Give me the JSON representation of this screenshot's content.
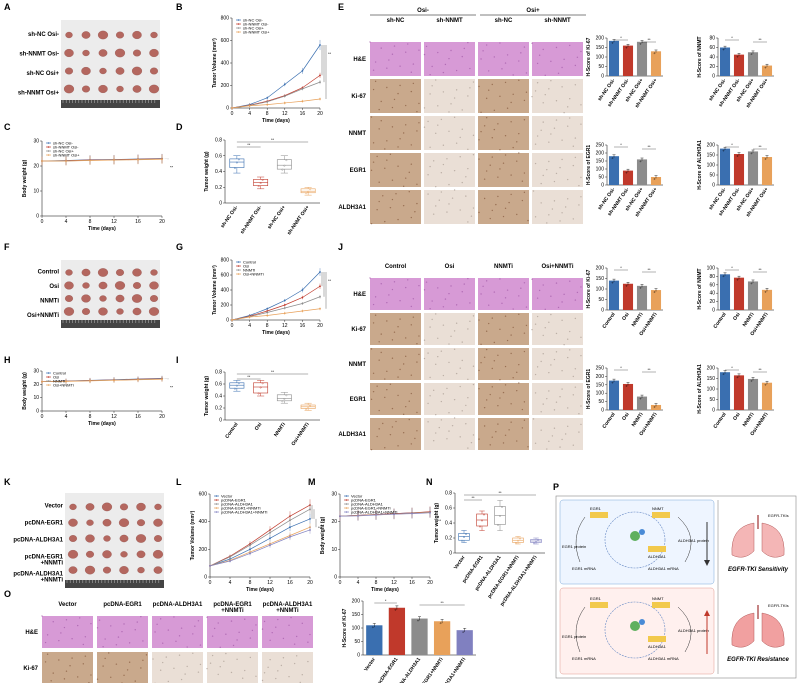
{
  "letters": [
    "A",
    "B",
    "C",
    "D",
    "E",
    "F",
    "G",
    "H",
    "I",
    "J",
    "K",
    "L",
    "M",
    "N",
    "O",
    "P"
  ],
  "colors": {
    "ctrl": "#3a6fb0",
    "red": "#c0392b",
    "grey": "#8c8c8c",
    "orange": "#e8a15a",
    "purple": "#8080c0",
    "he": "#d79ad6",
    "ihc_light": "#eadfd6",
    "ihc_dark": "#c9a98c",
    "tumor": "#b4675f",
    "photo_bg": "#ececec",
    "ruler": "#444444"
  },
  "labels": {
    "photoA": [
      "sh-NC Osi-",
      "sh-NNMT Osi-",
      "sh-NC Osi+",
      "sh-NNMT Osi+"
    ],
    "photoF": [
      "Control",
      "Osi",
      "NNMTi",
      "Osi+NNMTi"
    ],
    "photoK": [
      "Vector",
      "pcDNA-EGR1",
      "pcDNA-ALDH3A1",
      "pcDNA-EGR1\n+NNMTi",
      "pcDNA-ALDH3A1\n+NNMTi"
    ],
    "x_time": "Time (days)",
    "y_tv": "Tumor Volume (mm³)",
    "y_bw": "Body weight (g)",
    "y_tw": "Tumor weight (g)",
    "E_groups": [
      "Osi-",
      "Osi+"
    ],
    "E_cols": [
      "sh-NC",
      "sh-NNMT",
      "sh-NC",
      "sh-NNMT"
    ],
    "J_cols": [
      "Control",
      "Osi",
      "NNMTi",
      "Osi+NNMTi"
    ],
    "O_cols": [
      "Vector",
      "pcDNA-EGR1",
      "pcDNA-ALDH3A1",
      "pcDNA-EGR1\n+NNMTi",
      "pcDNA-ALDH3A1\n+NNMTi"
    ],
    "stains5": [
      "H&E",
      "Ki-67",
      "NNMT",
      "EGR1",
      "ALDH3A1"
    ],
    "stainsO": [
      "H&E",
      "Ki-67"
    ],
    "ylab_Ki67": "H-Score of Ki-67",
    "ylab_NNMT": "H-Score of NNMT",
    "ylab_EGR1": "H-Score of EGR1",
    "ylab_ALDH3A1": "H-Score of ALDH3A1",
    "sig": "*",
    "sig2": "**"
  },
  "P": {
    "sensitivity": "EGFR-TKI Sensitivity",
    "resistance": "EGFR-TKI Resistance",
    "tki": "EGFR-TKIs",
    "genes": [
      "EGR1",
      "NNMT",
      "ALDH3A1"
    ],
    "mrna": [
      "EGR1 mRNA",
      "ALDH3A1 mRNA"
    ],
    "proteins": [
      "EGR1 protein",
      "ALDH3A1 protein"
    ]
  },
  "chart_data": [
    {
      "panel": "B",
      "type": "line",
      "xlabel": "Time (days)",
      "ylabel": "Tumor Volume (mm³)",
      "x": [
        0,
        4,
        8,
        12,
        16,
        20
      ],
      "xticks": [
        0,
        4,
        8,
        12,
        16,
        20
      ],
      "yticks": [
        0,
        200,
        400,
        600,
        800
      ],
      "ylim": [
        0,
        800
      ],
      "series": [
        {
          "name": "sh-NC Osi-",
          "values": [
            0,
            30,
            90,
            210,
            330,
            560
          ]
        },
        {
          "name": "sh-NNMT Osi-",
          "values": [
            0,
            25,
            60,
            110,
            180,
            290
          ]
        },
        {
          "name": "sh-NC Osi+",
          "values": [
            0,
            22,
            55,
            105,
            170,
            230
          ]
        },
        {
          "name": "sh-NNMT Osi+",
          "values": [
            0,
            20,
            30,
            45,
            60,
            80
          ]
        }
      ]
    },
    {
      "panel": "C",
      "type": "line",
      "xlabel": "Time (days)",
      "ylabel": "Body weight (g)",
      "x": [
        0,
        4,
        8,
        12,
        16,
        20
      ],
      "xticks": [
        0,
        4,
        8,
        12,
        16,
        20
      ],
      "yticks": [
        0,
        10,
        20,
        30
      ],
      "ylim": [
        0,
        30
      ],
      "series": [
        {
          "name": "sh-NC Osi-",
          "values": [
            22,
            22.2,
            22.5,
            22.6,
            22.8,
            23
          ]
        },
        {
          "name": "sh-NNMT Osi-",
          "values": [
            22,
            22.1,
            22.4,
            22.5,
            22.7,
            22.9
          ]
        },
        {
          "name": "sh-NC Osi+",
          "values": [
            22,
            22,
            22.3,
            22.4,
            22.6,
            22.8
          ]
        },
        {
          "name": "sh-NNMT Osi+",
          "values": [
            22,
            22,
            22.2,
            22.4,
            22.5,
            22.7
          ]
        }
      ]
    },
    {
      "panel": "D",
      "type": "box",
      "ylabel": "Tumor weight (g)",
      "yticks": [
        0,
        0.2,
        0.4,
        0.6,
        0.8
      ],
      "ylim": [
        0,
        0.8
      ],
      "categories": [
        "sh-NC Osi-",
        "sh-NNMT Osi-",
        "sh-NC Osi+",
        "sh-NNMT Osi+"
      ],
      "boxes": [
        [
          0.38,
          0.45,
          0.52,
          0.56,
          0.6
        ],
        [
          0.18,
          0.22,
          0.26,
          0.3,
          0.33
        ],
        [
          0.38,
          0.43,
          0.48,
          0.55,
          0.6
        ],
        [
          0.1,
          0.13,
          0.15,
          0.18,
          0.2
        ]
      ]
    },
    {
      "panel": "E-Ki67",
      "type": "bar",
      "ylabel": "H-Score of Ki-67",
      "yticks": [
        0,
        50,
        100,
        150,
        200
      ],
      "ylim": [
        0,
        200
      ],
      "categories": [
        "sh-NC Osi-",
        "sh-NNMT Osi-",
        "sh-NC Osi+",
        "sh-NNMT Osi+"
      ],
      "values": [
        185,
        160,
        180,
        130
      ]
    },
    {
      "panel": "E-NNMT",
      "type": "bar",
      "ylabel": "H-Score of NNMT",
      "yticks": [
        0,
        20,
        40,
        60,
        80
      ],
      "ylim": [
        0,
        80
      ],
      "categories": [
        "sh-NC Osi-",
        "sh-NNMT Osi-",
        "sh-NC Osi+",
        "sh-NNMT Osi+"
      ],
      "values": [
        60,
        45,
        50,
        22
      ]
    },
    {
      "panel": "E-EGR1",
      "type": "bar",
      "ylabel": "H-Score of EGR1",
      "yticks": [
        0,
        50,
        100,
        150,
        200,
        250
      ],
      "ylim": [
        0,
        250
      ],
      "categories": [
        "sh-NC Osi-",
        "sh-NNMT Osi-",
        "sh-NC Osi+",
        "sh-NNMT Osi+"
      ],
      "values": [
        180,
        90,
        160,
        50
      ]
    },
    {
      "panel": "E-ALDH3A1",
      "type": "bar",
      "ylabel": "H-Score of ALDH3A1",
      "yticks": [
        0,
        50,
        100,
        150,
        200
      ],
      "ylim": [
        0,
        200
      ],
      "categories": [
        "sh-NC Osi-",
        "sh-NNMT Osi-",
        "sh-NC Osi+",
        "sh-NNMT Osi+"
      ],
      "values": [
        182,
        155,
        168,
        140
      ]
    },
    {
      "panel": "G",
      "type": "line",
      "xlabel": "Time (days)",
      "ylabel": "Tumor Volume (mm³)",
      "x": [
        0,
        4,
        8,
        12,
        16,
        20
      ],
      "xticks": [
        0,
        4,
        8,
        12,
        16,
        20
      ],
      "yticks": [
        0,
        200,
        400,
        600,
        800
      ],
      "ylim": [
        0,
        800
      ],
      "series": [
        {
          "name": "Control",
          "values": [
            0,
            60,
            150,
            260,
            400,
            640
          ]
        },
        {
          "name": "Osi",
          "values": [
            0,
            50,
            120,
            200,
            300,
            450
          ]
        },
        {
          "name": "NNMTi",
          "values": [
            0,
            45,
            100,
            160,
            220,
            310
          ]
        },
        {
          "name": "Osi+NNMTi",
          "values": [
            0,
            40,
            60,
            90,
            120,
            150
          ]
        }
      ]
    },
    {
      "panel": "H",
      "type": "line",
      "xlabel": "Time (days)",
      "ylabel": "Body weight (g)",
      "x": [
        0,
        4,
        8,
        12,
        16,
        20
      ],
      "xticks": [
        0,
        4,
        8,
        12,
        16,
        20
      ],
      "yticks": [
        0,
        10,
        20,
        30
      ],
      "ylim": [
        0,
        30
      ],
      "series": [
        {
          "name": "Control",
          "values": [
            22,
            22.5,
            23,
            23.5,
            24,
            24.5
          ]
        },
        {
          "name": "Osi",
          "values": [
            22,
            22.4,
            22.9,
            23.3,
            23.8,
            24.2
          ]
        },
        {
          "name": "NNMTi",
          "values": [
            22,
            22.3,
            22.8,
            23.2,
            23.6,
            24
          ]
        },
        {
          "name": "Osi+NNMTi",
          "values": [
            22,
            22.2,
            22.6,
            23,
            23.4,
            23.8
          ]
        }
      ]
    },
    {
      "panel": "I",
      "type": "box",
      "ylabel": "Tumor weight (g)",
      "yticks": [
        0,
        0.2,
        0.4,
        0.6,
        0.8
      ],
      "ylim": [
        0,
        0.8
      ],
      "categories": [
        "Control",
        "Osi",
        "NNMTi",
        "Osi+NNMTi"
      ],
      "boxes": [
        [
          0.48,
          0.53,
          0.58,
          0.62,
          0.66
        ],
        [
          0.4,
          0.45,
          0.55,
          0.62,
          0.66
        ],
        [
          0.28,
          0.32,
          0.36,
          0.42,
          0.46
        ],
        [
          0.16,
          0.19,
          0.22,
          0.25,
          0.28
        ]
      ]
    },
    {
      "panel": "J-Ki67",
      "type": "bar",
      "ylabel": "H-Score of Ki-67",
      "yticks": [
        0,
        50,
        100,
        150,
        200
      ],
      "ylim": [
        0,
        200
      ],
      "categories": [
        "Control",
        "Osi",
        "NNMTi",
        "Osi+NNMTi"
      ],
      "values": [
        140,
        125,
        115,
        95
      ]
    },
    {
      "panel": "J-NNMT",
      "type": "bar",
      "ylabel": "H-Score of NNMT",
      "yticks": [
        0,
        20,
        40,
        60,
        80,
        100
      ],
      "ylim": [
        0,
        100
      ],
      "categories": [
        "Control",
        "Osi",
        "NNMTi",
        "Osi+NNMTi"
      ],
      "values": [
        85,
        77,
        68,
        48
      ]
    },
    {
      "panel": "J-EGR1",
      "type": "bar",
      "ylabel": "H-Score of EGR1",
      "yticks": [
        0,
        50,
        100,
        150,
        200,
        250
      ],
      "ylim": [
        0,
        250
      ],
      "categories": [
        "Control",
        "Osi",
        "NNMTi",
        "Osi+NNMTi"
      ],
      "values": [
        175,
        155,
        80,
        30
      ]
    },
    {
      "panel": "J-ALDH3A1",
      "type": "bar",
      "ylabel": "H-Score of ALDH3A1",
      "yticks": [
        0,
        50,
        100,
        150,
        200
      ],
      "ylim": [
        0,
        200
      ],
      "categories": [
        "Control",
        "Osi",
        "NNMTi",
        "Osi+NNMTi"
      ],
      "values": [
        180,
        165,
        148,
        130
      ]
    },
    {
      "panel": "L",
      "type": "line",
      "xlabel": "Time (days)",
      "ylabel": "Tumor Volume (mm³)",
      "x": [
        0,
        4,
        8,
        12,
        16,
        20
      ],
      "xticks": [
        0,
        4,
        8,
        12,
        16,
        20
      ],
      "yticks": [
        0,
        200,
        400,
        600
      ],
      "ylim": [
        0,
        600
      ],
      "series": [
        {
          "name": "Vector",
          "values": [
            80,
            130,
            200,
            280,
            360,
            420
          ]
        },
        {
          "name": "pcDNA-EGR1",
          "values": [
            80,
            150,
            240,
            340,
            440,
            520
          ]
        },
        {
          "name": "pcDNA-ALDH3A1",
          "values": [
            80,
            145,
            230,
            320,
            410,
            490
          ]
        },
        {
          "name": "pcDNA-EGR1+NNMTi",
          "values": [
            80,
            120,
            180,
            240,
            300,
            360
          ]
        },
        {
          "name": "pcDNA-ALDH3A1+NNMTi",
          "values": [
            80,
            115,
            170,
            230,
            290,
            340
          ]
        }
      ]
    },
    {
      "panel": "M",
      "type": "line",
      "xlabel": "Time (days)",
      "ylabel": "Body weight (g)",
      "x": [
        0,
        4,
        8,
        12,
        16,
        20
      ],
      "xticks": [
        0,
        4,
        8,
        12,
        16,
        20
      ],
      "yticks": [
        0,
        10,
        20,
        30
      ],
      "ylim": [
        0,
        30
      ],
      "series": [
        {
          "name": "Vector",
          "values": [
            22,
            22.3,
            22.6,
            22.9,
            23.2,
            23.5
          ]
        },
        {
          "name": "pcDNA-EGR1",
          "values": [
            22,
            22.3,
            22.6,
            22.9,
            23.2,
            23.6
          ]
        },
        {
          "name": "pcDNA-ALDH3A1",
          "values": [
            22,
            22.2,
            22.5,
            22.8,
            23.1,
            23.4
          ]
        },
        {
          "name": "pcDNA-EGR1+NNMTi",
          "values": [
            22,
            22.2,
            22.5,
            22.7,
            23,
            23.3
          ]
        },
        {
          "name": "pcDNA-ALDH3A1+NNMTi",
          "values": [
            22,
            22.1,
            22.4,
            22.7,
            22.9,
            23.2
          ]
        }
      ]
    },
    {
      "panel": "N",
      "type": "box",
      "ylabel": "Tumor weight (g)",
      "yticks": [
        0,
        0.2,
        0.4,
        0.6,
        0.8
      ],
      "ylim": [
        0,
        0.8
      ],
      "categories": [
        "Vector",
        "pcDNA-EGR1",
        "pcDNA-ALDH3A1",
        "pcDNA-EGR1+NNMTi",
        "pcDNA-ALDH3A1+NNMTi"
      ],
      "boxes": [
        [
          0.14,
          0.17,
          0.22,
          0.26,
          0.3
        ],
        [
          0.3,
          0.36,
          0.44,
          0.52,
          0.56
        ],
        [
          0.3,
          0.38,
          0.5,
          0.62,
          0.7
        ],
        [
          0.12,
          0.14,
          0.17,
          0.2,
          0.22
        ],
        [
          0.12,
          0.14,
          0.16,
          0.18,
          0.2
        ]
      ]
    },
    {
      "panel": "O",
      "type": "bar",
      "ylabel": "H-Score of Ki-67",
      "yticks": [
        0,
        50,
        100,
        150,
        200
      ],
      "ylim": [
        0,
        200
      ],
      "categories": [
        "Vector",
        "pcDNA-EGR1",
        "pcDNA-ALDH3A1",
        "pcDNA-EGR1+NNMTi",
        "pcDNA-ALDH3A1+NNMTi"
      ],
      "values": [
        110,
        175,
        135,
        125,
        92
      ]
    }
  ]
}
